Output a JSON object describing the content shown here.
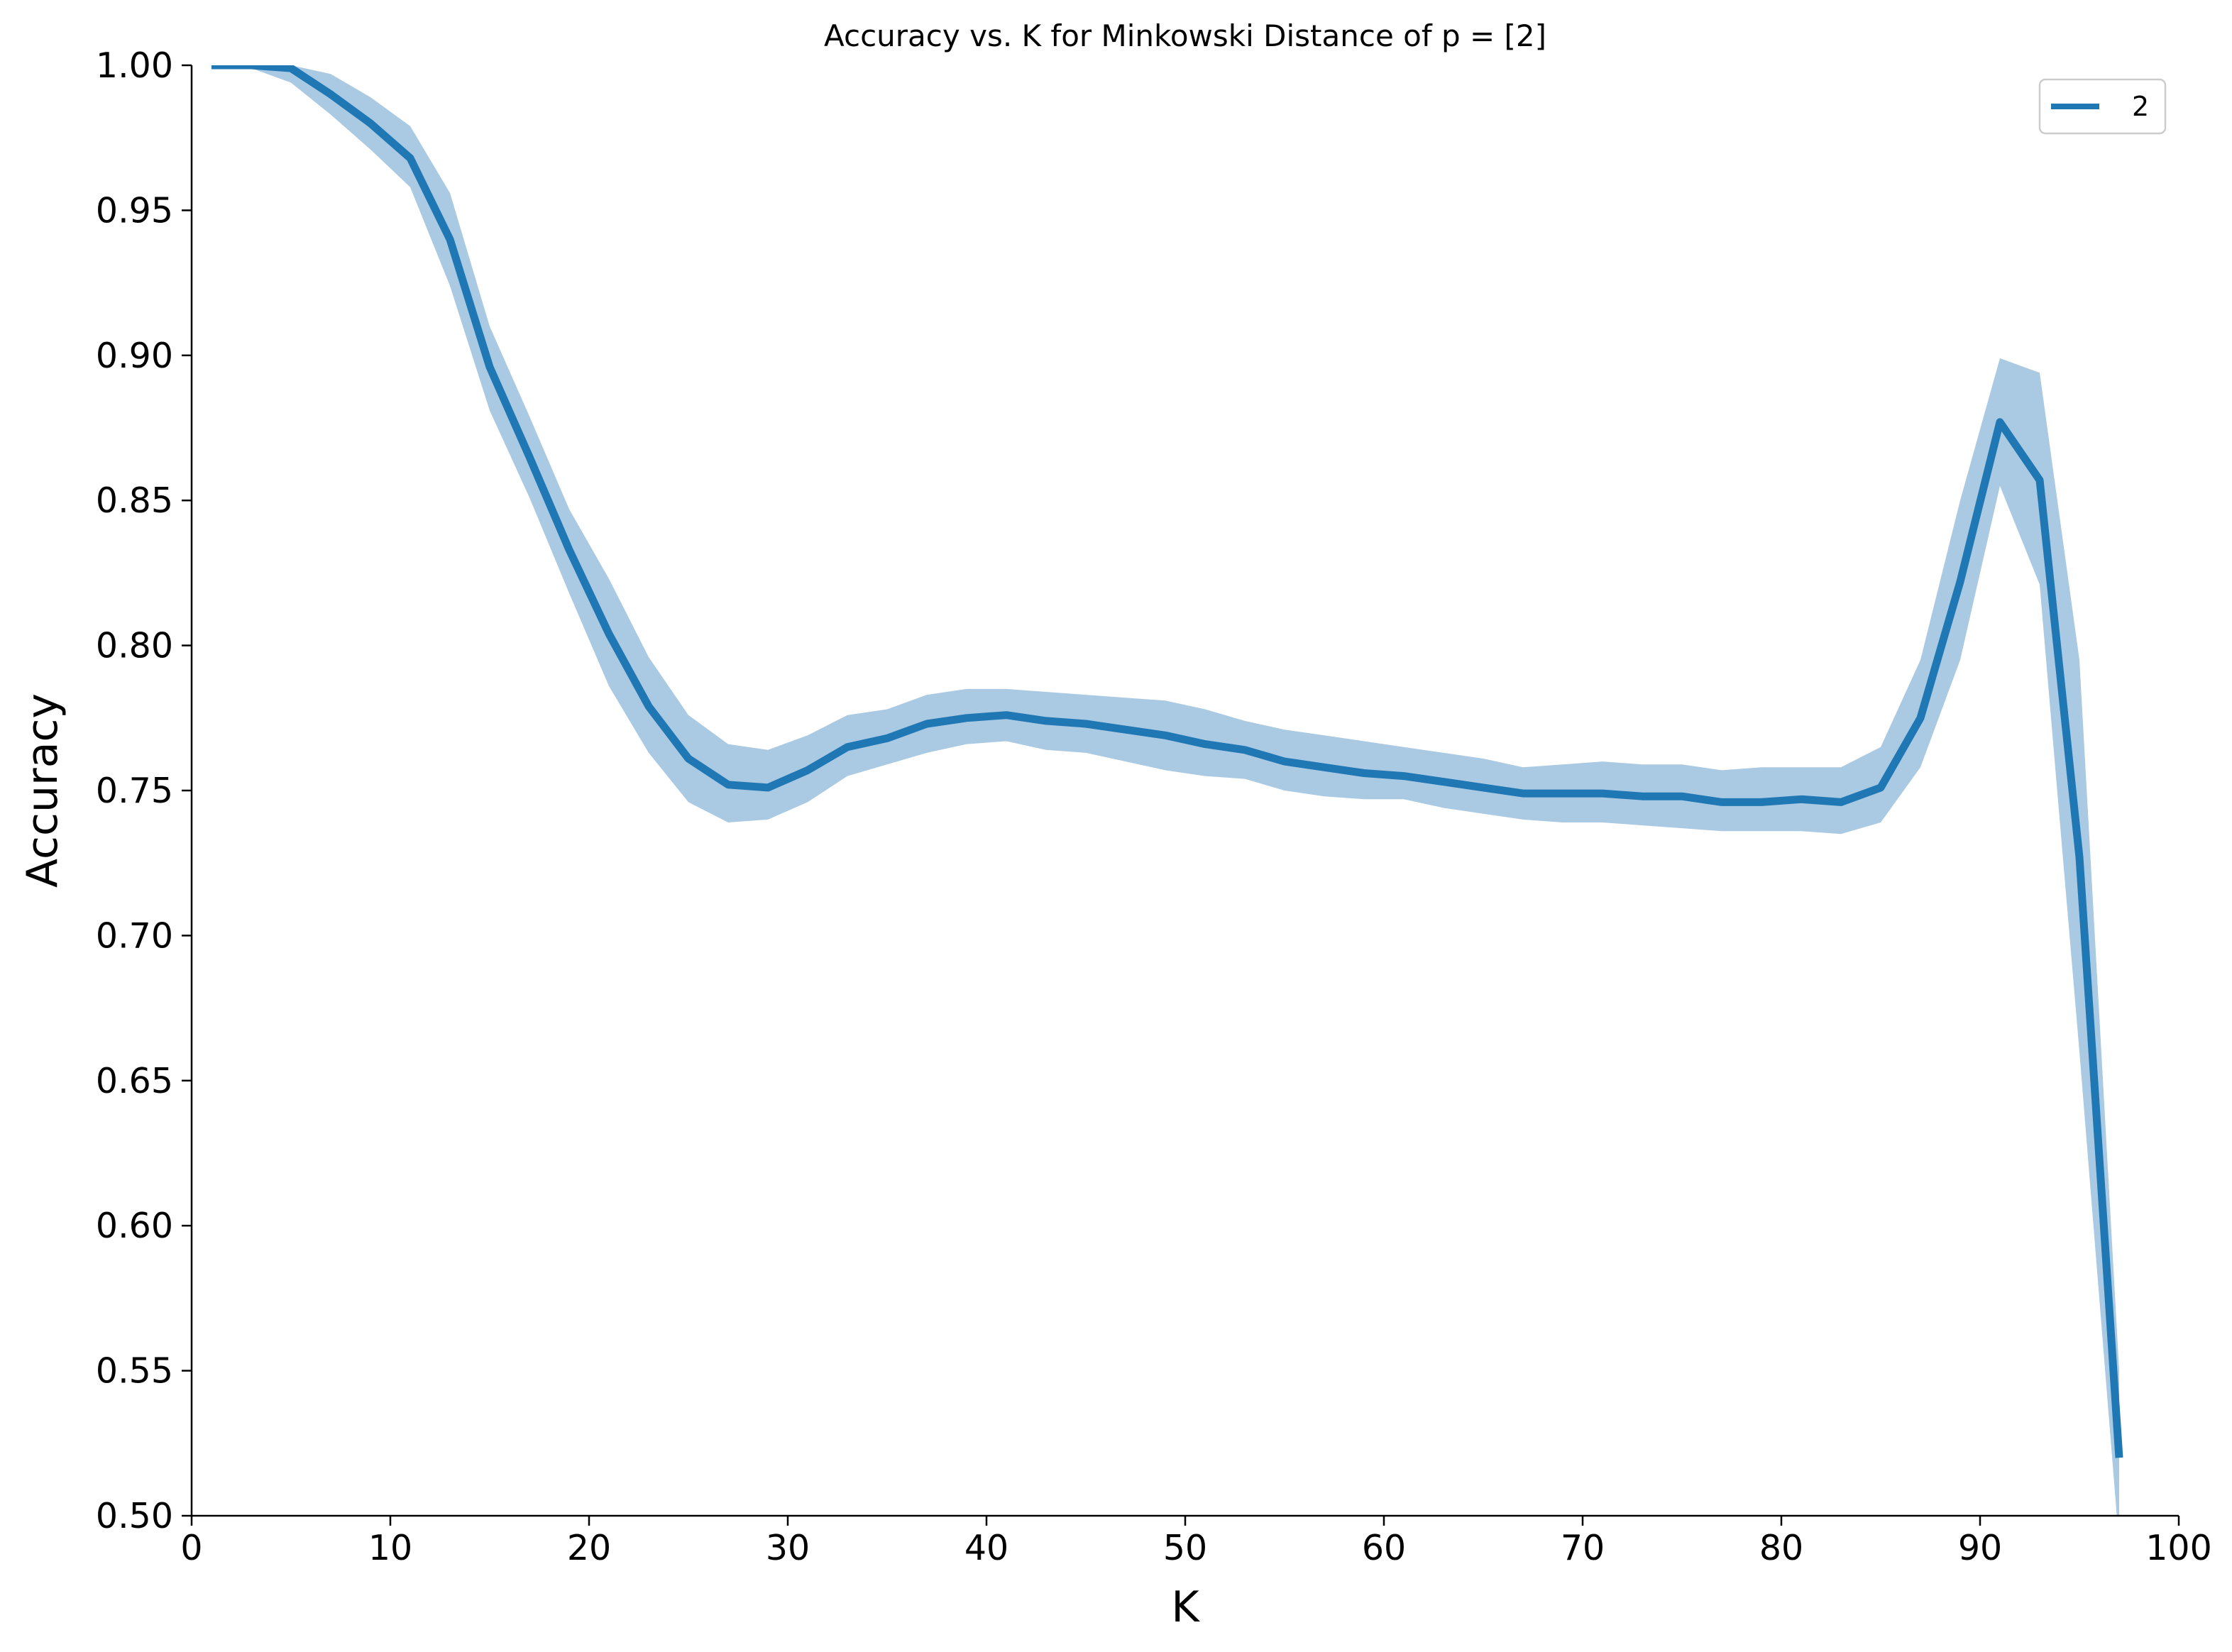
{
  "chart_data": {
    "type": "line",
    "title": "Accuracy vs. K for Minkowski Distance of p = [2]",
    "xlabel": "K",
    "ylabel": "Accuracy",
    "xlim": [
      0,
      100
    ],
    "ylim": [
      0.5,
      1.0
    ],
    "x_ticks": [
      "0",
      "10",
      "20",
      "30",
      "40",
      "50",
      "60",
      "70",
      "80",
      "90",
      "100"
    ],
    "y_ticks": [
      "0.50",
      "0.55",
      "0.60",
      "0.65",
      "0.70",
      "0.75",
      "0.80",
      "0.85",
      "0.90",
      "0.95",
      "1.00"
    ],
    "grid": false,
    "legend_position": "top-right",
    "series": [
      {
        "name": "2",
        "color": "#1f77b4",
        "band_color": "#aac9e2",
        "x": [
          1,
          3,
          5,
          7,
          9,
          11,
          13,
          15,
          17,
          19,
          21,
          23,
          25,
          27,
          29,
          31,
          33,
          35,
          37,
          39,
          41,
          43,
          45,
          47,
          49,
          51,
          53,
          55,
          57,
          59,
          61,
          63,
          65,
          67,
          69,
          71,
          73,
          75,
          77,
          79,
          81,
          83,
          85,
          87,
          89,
          91,
          93,
          95,
          97
        ],
        "y": [
          1.0,
          1.0,
          0.999,
          0.99,
          0.98,
          0.968,
          0.94,
          0.896,
          0.865,
          0.833,
          0.804,
          0.779,
          0.761,
          0.752,
          0.751,
          0.757,
          0.765,
          0.768,
          0.773,
          0.775,
          0.776,
          0.774,
          0.773,
          0.771,
          0.769,
          0.766,
          0.764,
          0.76,
          0.758,
          0.756,
          0.755,
          0.753,
          0.751,
          0.749,
          0.749,
          0.749,
          0.748,
          0.748,
          0.746,
          0.746,
          0.747,
          0.746,
          0.751,
          0.775,
          0.822,
          0.877,
          0.857,
          0.727,
          0.52
        ],
        "lower": [
          1.0,
          0.999,
          0.994,
          0.983,
          0.971,
          0.958,
          0.924,
          0.881,
          0.851,
          0.818,
          0.786,
          0.763,
          0.746,
          0.739,
          0.74,
          0.746,
          0.755,
          0.759,
          0.763,
          0.766,
          0.767,
          0.764,
          0.763,
          0.76,
          0.757,
          0.755,
          0.754,
          0.75,
          0.748,
          0.747,
          0.747,
          0.744,
          0.742,
          0.74,
          0.739,
          0.739,
          0.738,
          0.737,
          0.736,
          0.736,
          0.736,
          0.735,
          0.739,
          0.758,
          0.795,
          0.855,
          0.821,
          0.66,
          0.49
        ],
        "upper": [
          1.0,
          1.0,
          1.0,
          0.997,
          0.989,
          0.979,
          0.956,
          0.91,
          0.879,
          0.847,
          0.823,
          0.796,
          0.776,
          0.766,
          0.764,
          0.769,
          0.776,
          0.778,
          0.783,
          0.785,
          0.785,
          0.784,
          0.783,
          0.782,
          0.781,
          0.778,
          0.774,
          0.771,
          0.769,
          0.767,
          0.765,
          0.763,
          0.761,
          0.758,
          0.759,
          0.76,
          0.759,
          0.759,
          0.757,
          0.758,
          0.758,
          0.758,
          0.765,
          0.795,
          0.85,
          0.899,
          0.894,
          0.795,
          0.55
        ]
      }
    ]
  }
}
